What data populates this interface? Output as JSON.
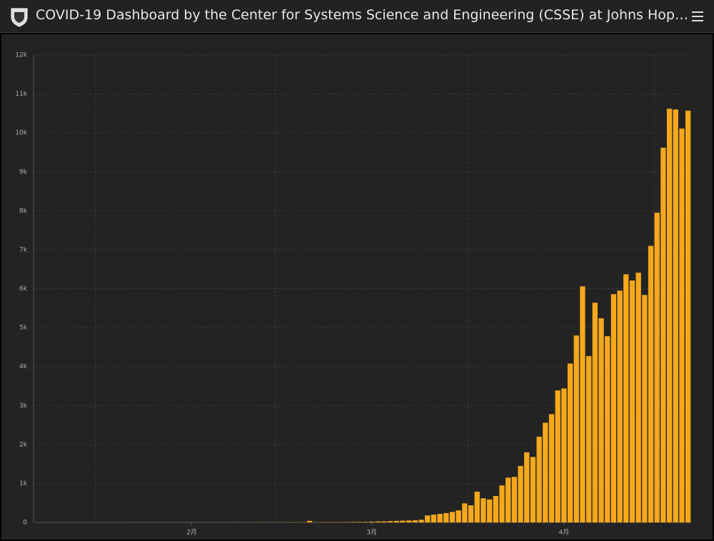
{
  "header": {
    "title": "COVID-19 Dashboard by the Center for Systems Science and Engineering (CSSE) at Johns Hop…"
  },
  "chart_data": {
    "type": "bar",
    "color": "#f5a81c",
    "grid": true,
    "categories": [
      null,
      null,
      null,
      null,
      null,
      null,
      null,
      null,
      null,
      null,
      null,
      null,
      null,
      null,
      null,
      null,
      null,
      null,
      null,
      null,
      null,
      null,
      null,
      null,
      null,
      "2月",
      null,
      null,
      null,
      null,
      null,
      null,
      null,
      null,
      null,
      null,
      null,
      null,
      null,
      null,
      null,
      null,
      null,
      null,
      null,
      null,
      null,
      null,
      null,
      null,
      null,
      null,
      null,
      null,
      "3月",
      null,
      null,
      null,
      null,
      null,
      null,
      null,
      null,
      null,
      null,
      null,
      null,
      null,
      null,
      null,
      null,
      null,
      null,
      null,
      null,
      null,
      null,
      null,
      null,
      null,
      null,
      null,
      null,
      null,
      null,
      "4月",
      null,
      null,
      null,
      null,
      null,
      null,
      null,
      null,
      null,
      null,
      null,
      null,
      null,
      null,
      null,
      null,
      null,
      null,
      null,
      null
    ],
    "values": [
      0,
      0,
      0,
      0,
      0,
      0,
      0,
      0,
      0,
      0,
      0,
      0,
      0,
      0,
      0,
      1,
      1,
      2,
      1,
      2,
      3,
      2,
      1,
      2,
      2,
      3,
      2,
      3,
      2,
      2,
      3,
      2,
      3,
      3,
      2,
      3,
      4,
      3,
      2,
      4,
      3,
      5,
      4,
      3,
      40,
      5,
      6,
      8,
      7,
      9,
      10,
      12,
      14,
      15,
      20,
      25,
      30,
      35,
      40,
      45,
      50,
      55,
      70,
      180,
      200,
      220,
      240,
      270,
      310,
      490,
      440,
      790,
      620,
      590,
      680,
      950,
      1150,
      1170,
      1450,
      1800,
      1680,
      2200,
      2560,
      2780,
      3390,
      3440,
      4080,
      4800,
      6060,
      4270,
      5640,
      5240,
      4780,
      5860,
      5950,
      6370,
      6210,
      6410,
      5840,
      7100,
      7950,
      9620,
      10620,
      10600,
      10110,
      10570
    ],
    "ylim": [
      0,
      12000
    ],
    "yticks": [
      0,
      {
        "value": 1000,
        "label": "1k"
      },
      {
        "value": 2000,
        "label": "2k"
      },
      {
        "value": 3000,
        "label": "3k"
      },
      {
        "value": 4000,
        "label": "4k"
      },
      {
        "value": 5000,
        "label": "5k"
      },
      {
        "value": 6000,
        "label": "6k"
      },
      {
        "value": 7000,
        "label": "7k"
      },
      {
        "value": 8000,
        "label": "8k"
      },
      {
        "value": 9000,
        "label": "9k"
      },
      {
        "value": 10000,
        "label": "10k"
      },
      {
        "value": 11000,
        "label": "11k"
      },
      {
        "value": 12000,
        "label": "12k"
      }
    ]
  }
}
